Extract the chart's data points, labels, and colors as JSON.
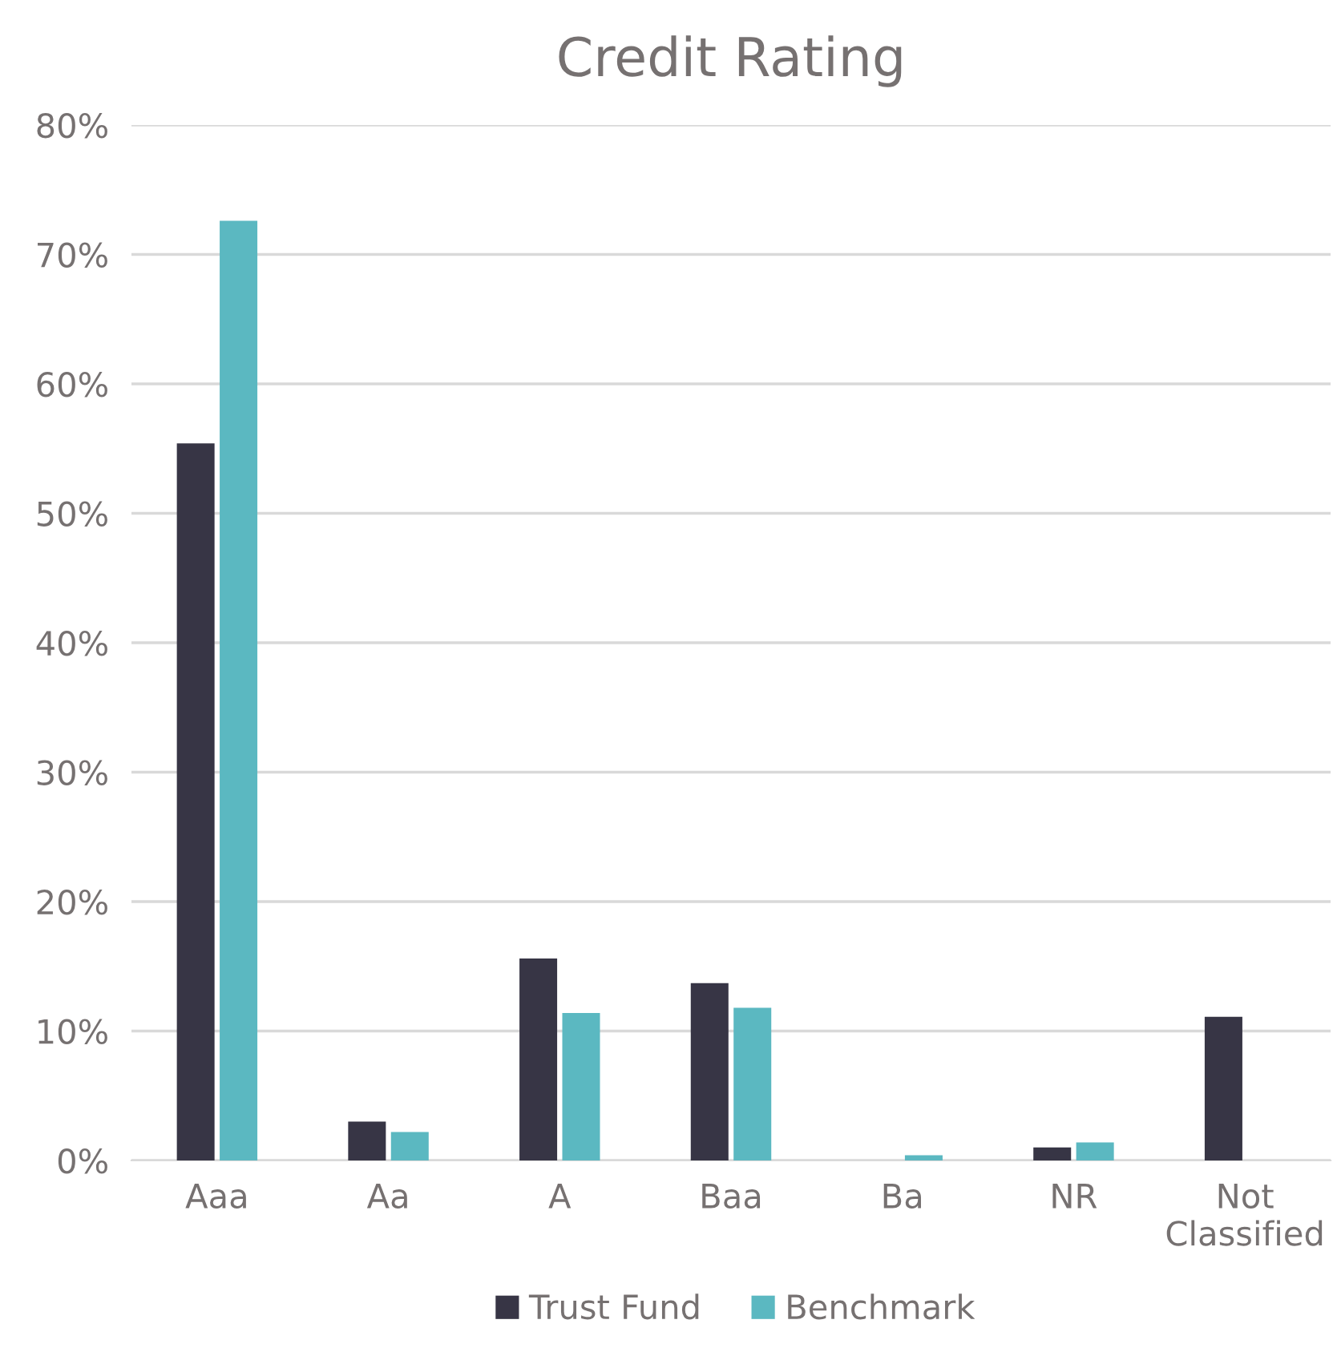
{
  "chart_data": {
    "type": "bar",
    "title": "Credit Rating",
    "categories": [
      "Aaa",
      "Aa",
      "A",
      "Baa",
      "Ba",
      "NR",
      "Not\nClassified"
    ],
    "series": [
      {
        "name": "Trust Fund",
        "color": "#373545",
        "values": [
          55.4,
          3.0,
          15.6,
          13.7,
          0,
          1.0,
          11.1
        ]
      },
      {
        "name": "Benchmark",
        "color": "#5bb8c1",
        "values": [
          72.6,
          2.2,
          11.4,
          11.8,
          0.4,
          1.4,
          0
        ]
      }
    ],
    "ylim": [
      0,
      80
    ],
    "yticks": [
      {
        "value": 0,
        "label": "0%"
      },
      {
        "value": 10,
        "label": "10%"
      },
      {
        "value": 20,
        "label": "20%"
      },
      {
        "value": 30,
        "label": "30%"
      },
      {
        "value": 40,
        "label": "40%"
      },
      {
        "value": 50,
        "label": "50%"
      },
      {
        "value": 60,
        "label": "60%"
      },
      {
        "value": 70,
        "label": "70%"
      },
      {
        "value": 80,
        "label": "80%"
      }
    ],
    "grid": "y",
    "legend": "bottom"
  }
}
